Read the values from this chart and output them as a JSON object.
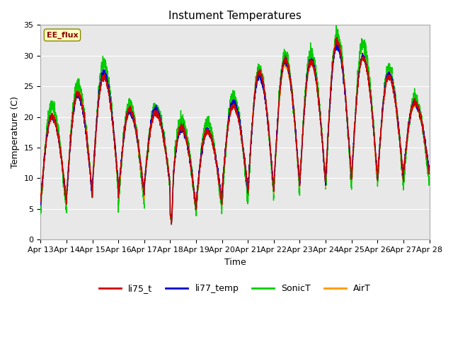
{
  "title": "Instument Temperatures",
  "xlabel": "Time",
  "ylabel": "Temperature (C)",
  "ylim": [
    0,
    35
  ],
  "xtick_labels": [
    "Apr 13",
    "Apr 14",
    "Apr 15",
    "Apr 16",
    "Apr 17",
    "Apr 18",
    "Apr 19",
    "Apr 20",
    "Apr 21",
    "Apr 22",
    "Apr 23",
    "Apr 24",
    "Apr 25",
    "Apr 26",
    "Apr 27",
    "Apr 28"
  ],
  "annotation_text": "EE_flux",
  "annotation_color": "#8B0000",
  "annotation_bg": "#FFFFC0",
  "grid_color": "#cccccc",
  "bg_color": "#e8e8e8",
  "legend_entries": [
    "li75_t",
    "li77_temp",
    "SonicT",
    "AirT"
  ],
  "line_colors": [
    "#cc0000",
    "#0000cc",
    "#00cc00",
    "#ff9900"
  ],
  "title_fontsize": 11,
  "axis_fontsize": 9,
  "tick_fontsize": 8,
  "n_days": 15,
  "day_peaks": [
    20,
    24,
    27,
    21,
    21,
    18,
    18,
    22,
    27,
    29,
    29,
    32,
    30,
    27,
    22
  ],
  "day_mins": [
    6,
    7,
    9,
    7,
    9,
    5,
    6,
    8,
    8,
    9,
    9,
    10,
    10,
    10,
    11
  ],
  "min_day_apr18": 2.5
}
